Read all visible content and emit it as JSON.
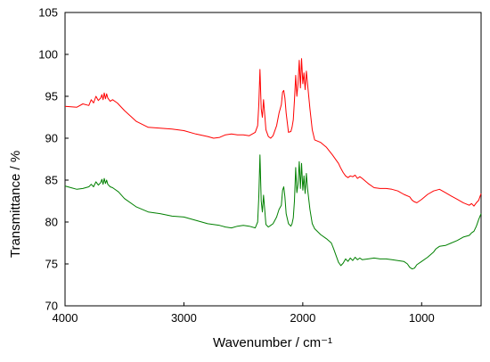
{
  "chart_data": {
    "type": "line",
    "xlabel": "Wavenumber / cm⁻¹",
    "ylabel": "Transmittance / %",
    "xlim": [
      4000,
      500
    ],
    "ylim": [
      70,
      105
    ],
    "x_ticks": [
      4000,
      3000,
      2000,
      1000
    ],
    "x_tick_labels": [
      "4000",
      "3000",
      "2000",
      "1000"
    ],
    "y_ticks": [
      70,
      75,
      80,
      85,
      90,
      95,
      100,
      105
    ],
    "y_tick_labels": [
      "70",
      "75",
      "80",
      "85",
      "90",
      "95",
      "100",
      "105"
    ],
    "grid": false,
    "legend": "none",
    "series": [
      {
        "color": "#ff0000",
        "x": [
          4000,
          3900,
          3850,
          3800,
          3780,
          3760,
          3740,
          3720,
          3700,
          3690,
          3680,
          3670,
          3660,
          3650,
          3640,
          3620,
          3600,
          3560,
          3500,
          3400,
          3300,
          3200,
          3100,
          3000,
          2900,
          2800,
          2750,
          2700,
          2650,
          2600,
          2550,
          2500,
          2450,
          2400,
          2380,
          2370,
          2360,
          2350,
          2340,
          2330,
          2310,
          2290,
          2270,
          2250,
          2220,
          2200,
          2180,
          2170,
          2160,
          2150,
          2140,
          2120,
          2100,
          2090,
          2080,
          2070,
          2060,
          2050,
          2040,
          2030,
          2020,
          2010,
          2000,
          1990,
          1980,
          1970,
          1960,
          1940,
          1920,
          1900,
          1850,
          1800,
          1750,
          1700,
          1680,
          1660,
          1640,
          1620,
          1600,
          1580,
          1560,
          1540,
          1520,
          1500,
          1450,
          1400,
          1350,
          1300,
          1250,
          1200,
          1150,
          1100,
          1080,
          1060,
          1040,
          1000,
          950,
          900,
          850,
          800,
          750,
          700,
          650,
          600,
          580,
          560,
          540,
          520,
          500
        ],
        "y": [
          93.8,
          93.7,
          94.1,
          93.9,
          94.6,
          94.2,
          95.0,
          94.5,
          94.8,
          95.2,
          94.6,
          95.4,
          94.7,
          95.3,
          94.8,
          94.4,
          94.6,
          94.2,
          93.3,
          92.0,
          91.3,
          91.2,
          91.1,
          90.9,
          90.5,
          90.2,
          90.0,
          90.1,
          90.4,
          90.5,
          90.4,
          90.4,
          90.3,
          90.7,
          91.5,
          94.0,
          98.2,
          93.5,
          92.5,
          94.6,
          91.0,
          90.2,
          90.0,
          90.3,
          91.5,
          93.0,
          94.0,
          95.5,
          95.7,
          94.8,
          93.0,
          90.7,
          90.8,
          91.3,
          92.2,
          94.5,
          97.5,
          95.0,
          96.5,
          99.3,
          96.0,
          99.5,
          96.5,
          97.8,
          95.8,
          98.0,
          96.5,
          93.5,
          91.0,
          89.8,
          89.5,
          88.9,
          88.0,
          87.0,
          86.4,
          85.9,
          85.5,
          85.3,
          85.5,
          85.4,
          85.6,
          85.2,
          85.4,
          85.2,
          84.6,
          84.1,
          84.0,
          84.0,
          83.9,
          83.7,
          83.3,
          83.0,
          82.6,
          82.4,
          82.3,
          82.7,
          83.3,
          83.7,
          83.9,
          83.5,
          83.1,
          82.7,
          82.3,
          82.0,
          82.2,
          81.9,
          82.3,
          82.6,
          83.4
        ]
      },
      {
        "color": "#008000",
        "x": [
          4000,
          3950,
          3900,
          3850,
          3800,
          3780,
          3760,
          3740,
          3720,
          3700,
          3690,
          3680,
          3670,
          3660,
          3650,
          3640,
          3620,
          3600,
          3550,
          3500,
          3400,
          3300,
          3200,
          3100,
          3000,
          2900,
          2800,
          2700,
          2650,
          2600,
          2550,
          2500,
          2450,
          2400,
          2380,
          2370,
          2360,
          2350,
          2340,
          2330,
          2310,
          2290,
          2270,
          2250,
          2220,
          2200,
          2180,
          2170,
          2160,
          2150,
          2140,
          2120,
          2100,
          2090,
          2080,
          2070,
          2060,
          2050,
          2040,
          2030,
          2020,
          2010,
          2000,
          1990,
          1980,
          1970,
          1960,
          1940,
          1920,
          1900,
          1850,
          1800,
          1760,
          1740,
          1720,
          1700,
          1680,
          1660,
          1640,
          1620,
          1600,
          1580,
          1560,
          1540,
          1520,
          1500,
          1450,
          1400,
          1350,
          1300,
          1250,
          1200,
          1150,
          1120,
          1100,
          1080,
          1060,
          1040,
          1000,
          950,
          900,
          880,
          860,
          850,
          800,
          750,
          700,
          650,
          600,
          580,
          560,
          540,
          520,
          500
        ],
        "y": [
          84.3,
          84.1,
          83.9,
          84.0,
          84.2,
          84.5,
          84.2,
          84.8,
          84.4,
          84.7,
          85.1,
          84.5,
          85.2,
          84.6,
          85.0,
          84.5,
          84.2,
          84.1,
          83.6,
          82.8,
          81.8,
          81.2,
          81.0,
          80.7,
          80.6,
          80.2,
          79.8,
          79.6,
          79.4,
          79.3,
          79.5,
          79.6,
          79.5,
          79.3,
          80.0,
          83.0,
          88.0,
          82.5,
          81.2,
          83.2,
          79.7,
          79.4,
          79.6,
          79.8,
          80.6,
          81.5,
          82.0,
          83.8,
          84.2,
          83.0,
          81.0,
          79.8,
          79.5,
          79.8,
          80.5,
          82.5,
          86.5,
          83.5,
          84.5,
          87.2,
          84.0,
          87.0,
          83.8,
          85.5,
          83.4,
          85.8,
          84.0,
          81.5,
          79.8,
          79.2,
          78.5,
          78.0,
          77.5,
          76.8,
          76.0,
          75.2,
          74.8,
          75.1,
          75.6,
          75.3,
          75.7,
          75.4,
          75.8,
          75.5,
          75.7,
          75.5,
          75.6,
          75.7,
          75.6,
          75.6,
          75.5,
          75.4,
          75.3,
          75.0,
          74.6,
          74.4,
          74.5,
          74.9,
          75.3,
          75.8,
          76.4,
          76.8,
          77.0,
          77.1,
          77.2,
          77.5,
          77.8,
          78.2,
          78.4,
          78.7,
          78.9,
          79.5,
          80.3,
          81.0
        ]
      }
    ]
  }
}
